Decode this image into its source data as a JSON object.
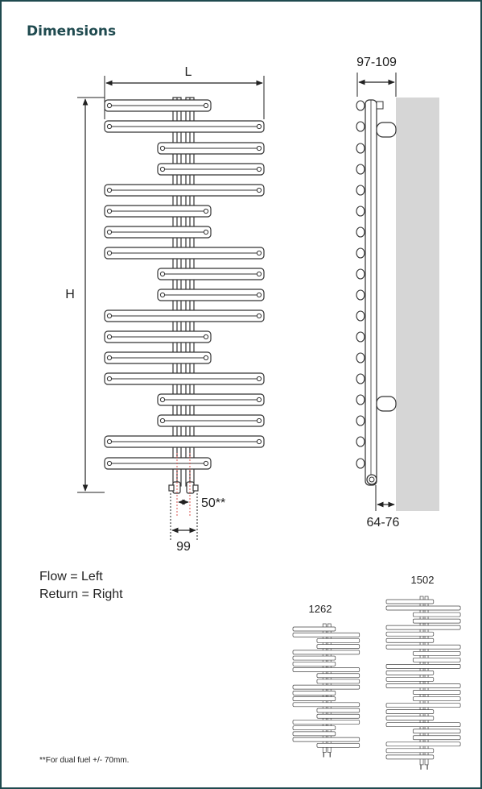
{
  "header": {
    "title": "Dimensions"
  },
  "diagram": {
    "front_view": {
      "width_label": "L",
      "height_label": "H",
      "pipe_spacing_label": "50**",
      "valve_spacing_label": "99"
    },
    "side_view": {
      "depth_top_label": "97-109",
      "depth_bottom_label": "64-76"
    },
    "size_variants": [
      "1262",
      "1502"
    ]
  },
  "notes": {
    "flow": "Flow = Left",
    "return": "Return = Right",
    "footnote": "**For dual fuel +/- 70mm."
  },
  "colors": {
    "heading": "#1f4a4f",
    "frame": "#1f4a4f",
    "line": "#333333",
    "wall": "#d6d6d6",
    "accent_dashed": "#d9534f"
  }
}
